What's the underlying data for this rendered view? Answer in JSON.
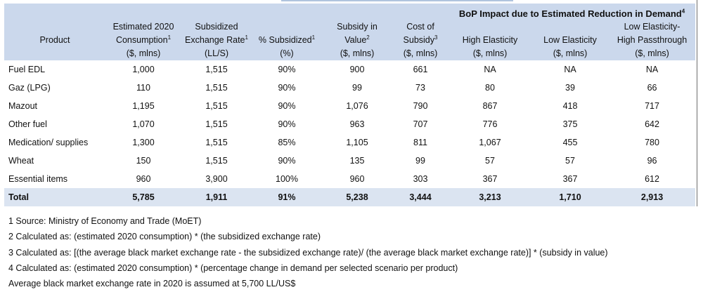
{
  "table": {
    "group_header": "BoP Impact due to Estimated Reduction in Demand",
    "group_header_sup": "4",
    "headers": [
      {
        "lines": [
          "Product"
        ],
        "sup": "",
        "unit": ""
      },
      {
        "lines": [
          "Estimated 2020",
          "Consumption"
        ],
        "sup": "1",
        "unit": "($, mlns)"
      },
      {
        "lines": [
          "Subsidized",
          "Exchange Rate"
        ],
        "sup": "1",
        "unit": "(LL/S)"
      },
      {
        "lines": [
          "% Subsidized"
        ],
        "sup": "1",
        "unit": "(%)"
      },
      {
        "lines": [
          "Subsidy in",
          "Value"
        ],
        "sup": "2",
        "unit": "($, mlns)"
      },
      {
        "lines": [
          "Cost of",
          "Subsidy"
        ],
        "sup": "3",
        "unit": "($, mlns)"
      },
      {
        "lines": [
          "High Elasticity"
        ],
        "sup": "",
        "unit": "($, mlns)"
      },
      {
        "lines": [
          "Low Elasticity"
        ],
        "sup": "",
        "unit": "($, mlns)"
      },
      {
        "lines": [
          "Low Elasticity-",
          "High Passthrough"
        ],
        "sup": "",
        "unit": "($, mlns)"
      }
    ],
    "rows": [
      [
        "Fuel EDL",
        "1,000",
        "1,515",
        "90%",
        "900",
        "661",
        "NA",
        "NA",
        "NA"
      ],
      [
        "Gaz (LPG)",
        "110",
        "1,515",
        "90%",
        "99",
        "73",
        "80",
        "39",
        "66"
      ],
      [
        "Mazout",
        "1,195",
        "1,515",
        "90%",
        "1,076",
        "790",
        "867",
        "418",
        "717"
      ],
      [
        "Other fuel",
        "1,070",
        "1,515",
        "90%",
        "963",
        "707",
        "776",
        "375",
        "642"
      ],
      [
        "Medication/ supplies",
        "1,300",
        "1,515",
        "85%",
        "1,105",
        "811",
        "1,067",
        "455",
        "780"
      ],
      [
        "Wheat",
        "150",
        "1,515",
        "90%",
        "135",
        "99",
        "57",
        "57",
        "96"
      ],
      [
        "Essential items",
        "960",
        "3,900",
        "100%",
        "960",
        "303",
        "367",
        "367",
        "612"
      ]
    ],
    "total": [
      "Total",
      "5,785",
      "1,911",
      "91%",
      "5,238",
      "3,444",
      "3,213",
      "1,710",
      "2,913"
    ]
  },
  "notes": [
    "1 Source: Ministry of Economy and Trade (MoET)",
    "2 Calculated as: (estimated 2020 consumption) * (the subsidized exchange rate)",
    "3 Calculated as: [(the average black market exchange rate - the subsidized exchange rate)/ (the average black market exchange rate)] * (subsidy in value)",
    "4 Calculated as: (estimated 2020 consumption) * (percentage change in demand per selected scenario per product)",
    "Average black market exchange rate in 2020 is assumed at 5,700 LL/US$"
  ]
}
